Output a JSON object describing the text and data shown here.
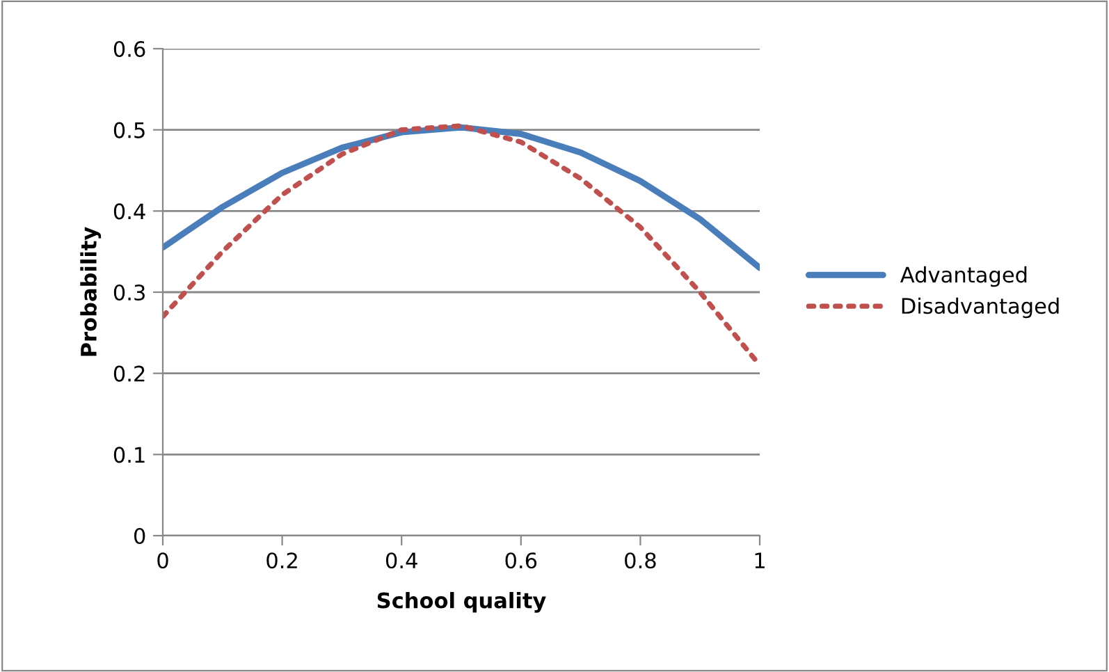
{
  "chart_data": {
    "type": "line",
    "xlabel": "School quality",
    "ylabel": "Probability",
    "x": [
      0,
      0.1,
      0.2,
      0.3,
      0.4,
      0.5,
      0.6,
      0.7,
      0.8,
      0.9,
      1
    ],
    "series": [
      {
        "name": "Advantaged",
        "color": "#4a7ebb",
        "line_style": "solid",
        "values": [
          0.355,
          0.405,
          0.447,
          0.478,
          0.497,
          0.503,
          0.495,
          0.472,
          0.437,
          0.39,
          0.33
        ]
      },
      {
        "name": "Disadvantaged",
        "color": "#c0504d",
        "line_style": "dotted",
        "values": [
          0.27,
          0.35,
          0.42,
          0.47,
          0.5,
          0.505,
          0.485,
          0.44,
          0.38,
          0.3,
          0.21
        ]
      }
    ],
    "xlim": [
      0,
      1
    ],
    "xticks": [
      0,
      0.2,
      0.4,
      0.6,
      0.8,
      1
    ],
    "ylim": [
      0,
      0.6
    ],
    "yticks": [
      0,
      0.1,
      0.2,
      0.3,
      0.4,
      0.5,
      0.6
    ],
    "grid": "y",
    "legend": "right",
    "marker": "none"
  }
}
